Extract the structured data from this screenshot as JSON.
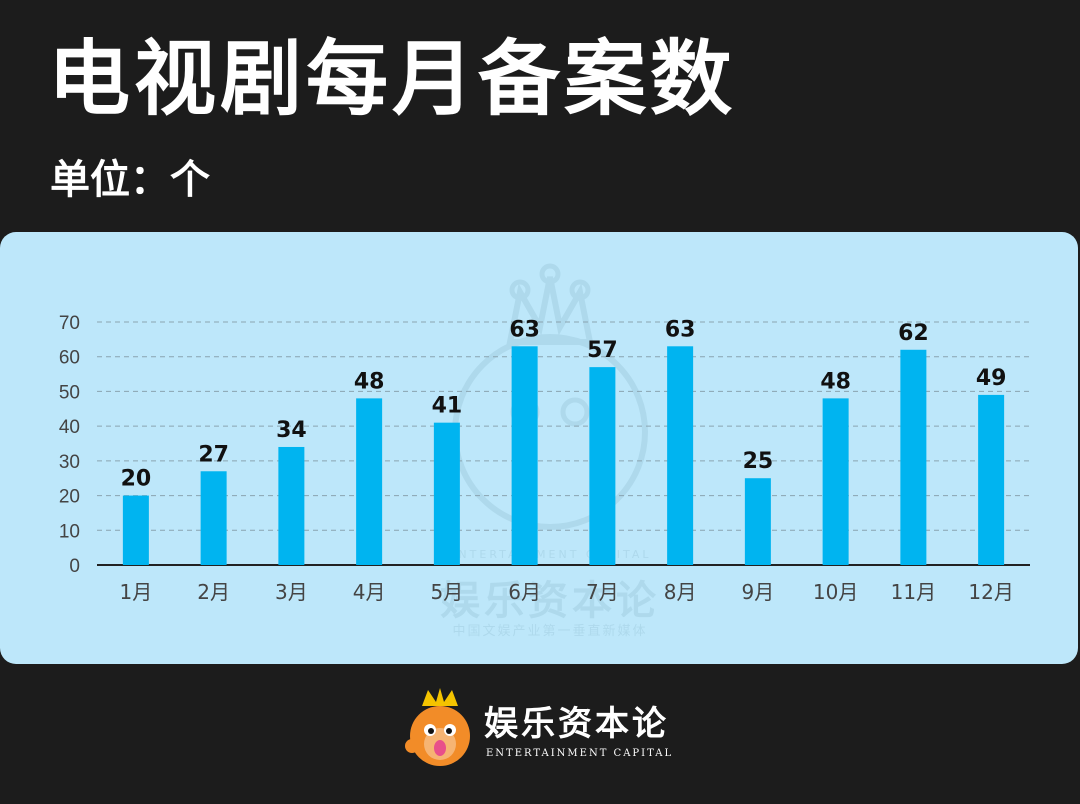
{
  "header": {
    "title": "电视剧每月备案数",
    "unit": "单位：个"
  },
  "colors": {
    "background": "#1c1c1c",
    "panel": "#bde7fa",
    "bar": "#00b4f0",
    "grid": "#8aa4b0",
    "axis_text": "#444444",
    "label_text": "#111111"
  },
  "chart_data": {
    "type": "bar",
    "title": "电视剧每月备案数",
    "ylabel": "单位：个",
    "categories": [
      "1月",
      "2月",
      "3月",
      "4月",
      "5月",
      "6月",
      "7月",
      "8月",
      "9月",
      "10月",
      "11月",
      "12月"
    ],
    "values": [
      20,
      27,
      34,
      48,
      41,
      63,
      57,
      63,
      25,
      48,
      62,
      49
    ],
    "ylim": [
      0,
      70
    ],
    "yticks": [
      0,
      10,
      20,
      30,
      40,
      50,
      60,
      70
    ],
    "grid": true,
    "data_labels": true
  },
  "watermark": {
    "brand": "娱乐资本论",
    "en": "ENTERTAINMENT CAPITAL",
    "tagline": "中国文娱产业第一垂直新媒体"
  },
  "footer": {
    "brand": "娱乐资本论",
    "tagline": "ENTERTAINMENT CAPITAL"
  }
}
